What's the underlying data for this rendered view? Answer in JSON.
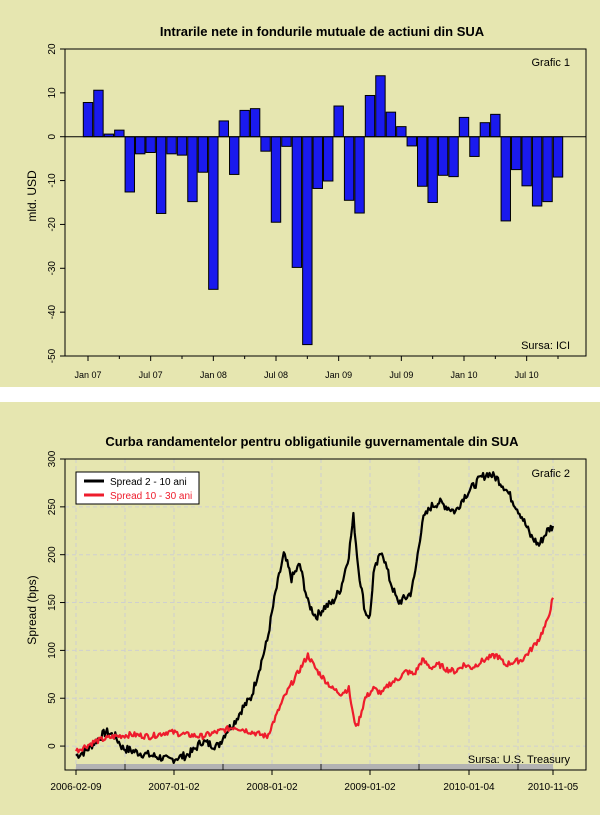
{
  "chart_data": [
    {
      "type": "bar",
      "title": "Intrarile nete in fondurile mutuale de actiuni din SUA",
      "label": "Grafic 1",
      "source": "Sursa: ICI",
      "xlabel": "",
      "ylabel": "mld. USD",
      "ylim": [
        -50,
        20
      ],
      "yticks": [
        "-50",
        "-40",
        "-30",
        "-20",
        "-10",
        "0",
        "10",
        "20"
      ],
      "xticks": [
        "Jan 07",
        "Jul 07",
        "Jan 08",
        "Jul 08",
        "Jan 09",
        "Jul 09",
        "Jan 10",
        "Jul 10"
      ],
      "bar_color": "#1a1aee",
      "categories": [
        "2007-01",
        "2007-02",
        "2007-03",
        "2007-04",
        "2007-05",
        "2007-06",
        "2007-07",
        "2007-08",
        "2007-09",
        "2007-10",
        "2007-11",
        "2007-12",
        "2008-01",
        "2008-02",
        "2008-03",
        "2008-04",
        "2008-05",
        "2008-06",
        "2008-07",
        "2008-08",
        "2008-09",
        "2008-10",
        "2008-11",
        "2008-12",
        "2009-01",
        "2009-02",
        "2009-03",
        "2009-04",
        "2009-05",
        "2009-06",
        "2009-07",
        "2009-08",
        "2009-09",
        "2009-10",
        "2009-11",
        "2009-12",
        "2010-01",
        "2010-02",
        "2010-03",
        "2010-04",
        "2010-05",
        "2010-06",
        "2010-07",
        "2010-08",
        "2010-09",
        "2010-10"
      ],
      "values": [
        7.8,
        10.6,
        0.6,
        1.5,
        -12.6,
        -3.9,
        -3.6,
        -17.5,
        -3.9,
        -4.2,
        -14.8,
        -8.1,
        -34.8,
        3.6,
        -8.6,
        6.0,
        6.4,
        -3.3,
        -19.5,
        -2.2,
        -29.8,
        -47.4,
        -11.8,
        -10.1,
        7.0,
        -14.5,
        -17.4,
        9.4,
        13.9,
        5.6,
        2.3,
        -2.1,
        -11.3,
        -15.0,
        -8.8,
        -9.1,
        4.4,
        -4.5,
        3.2,
        5.1,
        -19.2,
        -7.5,
        -11.2,
        -15.8,
        -14.8,
        -9.2
      ]
    },
    {
      "type": "line",
      "title": "Curba randamentelor pentru obligatiunile guvernamentale din SUA",
      "label": "Grafic 2",
      "source": "Sursa: U.S. Treasury",
      "xlabel": "",
      "ylabel": "Spread (bps)",
      "ylim": [
        -25,
        300
      ],
      "yticks": [
        "0",
        "50",
        "100",
        "150",
        "200",
        "250",
        "300"
      ],
      "xticks": [
        "2006-02-09",
        "2007-01-02",
        "2008-01-02",
        "2009-01-02",
        "2010-01-04",
        "2010-11-05"
      ],
      "grid": true,
      "legend": "top-left",
      "series": [
        {
          "name": "Spread 2 - 10 ani",
          "color": "#000000",
          "x": [
            "2006-02-09",
            "2006-03-15",
            "2006-04-15",
            "2006-05-20",
            "2006-06-20",
            "2006-07-15",
            "2006-08-15",
            "2006-09-20",
            "2006-10-20",
            "2006-11-20",
            "2006-12-15",
            "2007-01-15",
            "2007-02-15",
            "2007-03-15",
            "2007-04-15",
            "2007-05-15",
            "2007-06-15",
            "2007-07-15",
            "2007-08-15",
            "2007-09-15",
            "2007-10-15",
            "2007-11-15",
            "2007-12-15",
            "2008-01-15",
            "2008-02-15",
            "2008-02-28",
            "2008-03-15",
            "2008-04-15",
            "2008-05-15",
            "2008-06-15",
            "2008-07-15",
            "2008-08-15",
            "2008-09-15",
            "2008-10-15",
            "2008-11-01",
            "2008-11-20",
            "2008-12-15",
            "2009-01-02",
            "2009-01-15",
            "2009-02-15",
            "2009-03-15",
            "2009-04-15",
            "2009-05-15",
            "2009-06-01",
            "2009-06-15",
            "2009-07-15",
            "2009-08-15",
            "2009-09-15",
            "2009-10-15",
            "2009-11-15",
            "2009-12-15",
            "2010-01-15",
            "2010-02-15",
            "2010-03-15",
            "2010-04-15",
            "2010-05-15",
            "2010-06-15",
            "2010-07-15",
            "2010-08-15",
            "2010-09-15",
            "2010-10-15",
            "2010-11-05"
          ],
          "y": [
            -10,
            -5,
            5,
            15,
            10,
            -2,
            -5,
            -8,
            -10,
            -12,
            -15,
            -12,
            -10,
            -5,
            5,
            2,
            0,
            15,
            25,
            40,
            50,
            80,
            110,
            160,
            200,
            190,
            175,
            190,
            150,
            135,
            145,
            150,
            165,
            200,
            240,
            185,
            140,
            135,
            180,
            205,
            175,
            150,
            155,
            160,
            175,
            235,
            250,
            255,
            250,
            245,
            260,
            270,
            280,
            285,
            280,
            270,
            255,
            240,
            220,
            210,
            225,
            230
          ]
        },
        {
          "name": "Spread 10 - 30 ani",
          "color": "#ee1c2c",
          "x": [
            "2006-02-09",
            "2006-04-15",
            "2006-06-15",
            "2006-08-15",
            "2006-10-15",
            "2006-12-15",
            "2007-02-15",
            "2007-04-15",
            "2007-06-15",
            "2007-08-15",
            "2007-10-15",
            "2007-12-15",
            "2008-01-15",
            "2008-02-15",
            "2008-03-15",
            "2008-04-15",
            "2008-05-15",
            "2008-06-15",
            "2008-07-15",
            "2008-08-15",
            "2008-09-15",
            "2008-10-15",
            "2008-11-01",
            "2008-11-15",
            "2008-12-15",
            "2009-01-15",
            "2009-02-15",
            "2009-03-15",
            "2009-04-15",
            "2009-05-15",
            "2009-06-15",
            "2009-07-15",
            "2009-08-15",
            "2009-09-15",
            "2009-10-15",
            "2009-11-15",
            "2009-12-15",
            "2010-01-15",
            "2010-02-15",
            "2010-03-15",
            "2010-04-15",
            "2010-05-15",
            "2010-06-15",
            "2010-07-15",
            "2010-08-15",
            "2010-09-15",
            "2010-10-15",
            "2010-11-05"
          ],
          "y": [
            -5,
            5,
            10,
            12,
            10,
            15,
            12,
            10,
            15,
            20,
            15,
            10,
            30,
            50,
            65,
            80,
            95,
            80,
            70,
            60,
            55,
            60,
            30,
            20,
            50,
            60,
            55,
            65,
            70,
            78,
            75,
            90,
            82,
            85,
            80,
            78,
            85,
            82,
            88,
            92,
            95,
            85,
            88,
            90,
            100,
            112,
            130,
            155
          ]
        }
      ]
    }
  ]
}
